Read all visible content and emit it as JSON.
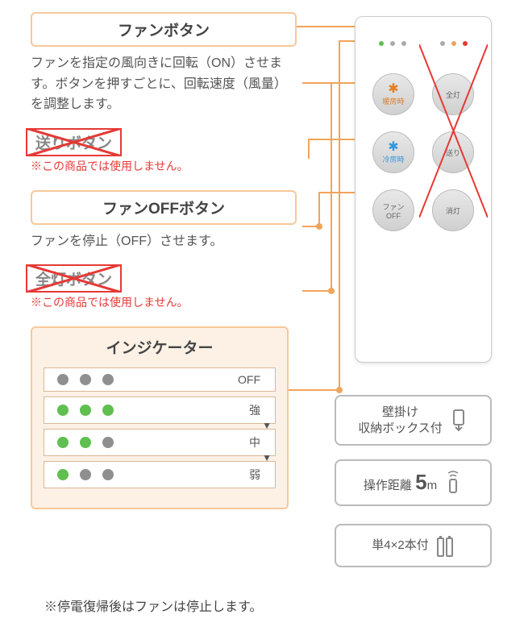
{
  "colors": {
    "border": "#f7c89a",
    "bg_card": "#fdf1e6",
    "red": "#e53935",
    "gray_dot": "#8f8f8f",
    "green_dot": "#5fbf4f",
    "led_green": "#5fbf4f",
    "led_gray": "#aaaaaa",
    "led_orange": "#f2a45a",
    "led_red": "#e53935"
  },
  "sections": {
    "fan_button": {
      "title": "ファンボタン",
      "desc": "ファンを指定の風向きに回転（ON）させます。ボタンを押すごとに、回転速度（風量）を調整します。"
    },
    "send_button": {
      "title": "送りボタン",
      "note": "※この商品では使用しません。"
    },
    "fan_off_button": {
      "title": "ファンOFFボタン",
      "desc": "ファンを停止（OFF）させます。"
    },
    "all_on_button": {
      "title": "全灯ボタン",
      "note": "※この商品では使用しません。"
    },
    "indicator": {
      "title": "インジケーター",
      "rows": [
        {
          "dots": [
            "gray",
            "gray",
            "gray"
          ],
          "label": "OFF"
        },
        {
          "dots": [
            "green",
            "green",
            "green"
          ],
          "label": "強",
          "arrow": true
        },
        {
          "dots": [
            "green",
            "green",
            "gray"
          ],
          "label": "中",
          "arrow": true
        },
        {
          "dots": [
            "green",
            "gray",
            "gray"
          ],
          "label": "弱"
        }
      ]
    }
  },
  "remote": {
    "leds_left": [
      "green",
      "gray",
      "gray"
    ],
    "leds_right": [
      "gray",
      "orange",
      "red"
    ],
    "buttons": [
      {
        "label": "暖房時",
        "icon": "✱",
        "cls": "orange"
      },
      {
        "label": "全灯",
        "icon": "",
        "cls": ""
      },
      {
        "label": "冷房時",
        "icon": "✱",
        "cls": "blue"
      },
      {
        "label": "送り",
        "icon": "",
        "cls": ""
      },
      {
        "label": "ファン",
        "sub": "OFF",
        "icon": "",
        "cls": ""
      },
      {
        "label": "消灯",
        "icon": "",
        "cls": ""
      }
    ]
  },
  "badges": {
    "wall": {
      "line1": "壁掛け",
      "line2": "収納ボックス付"
    },
    "range": {
      "prefix": "操作距離",
      "value": "5",
      "unit": "m"
    },
    "battery": {
      "text": "単4×2本付"
    }
  },
  "footer": "※停電復帰後はファンは停止します。"
}
